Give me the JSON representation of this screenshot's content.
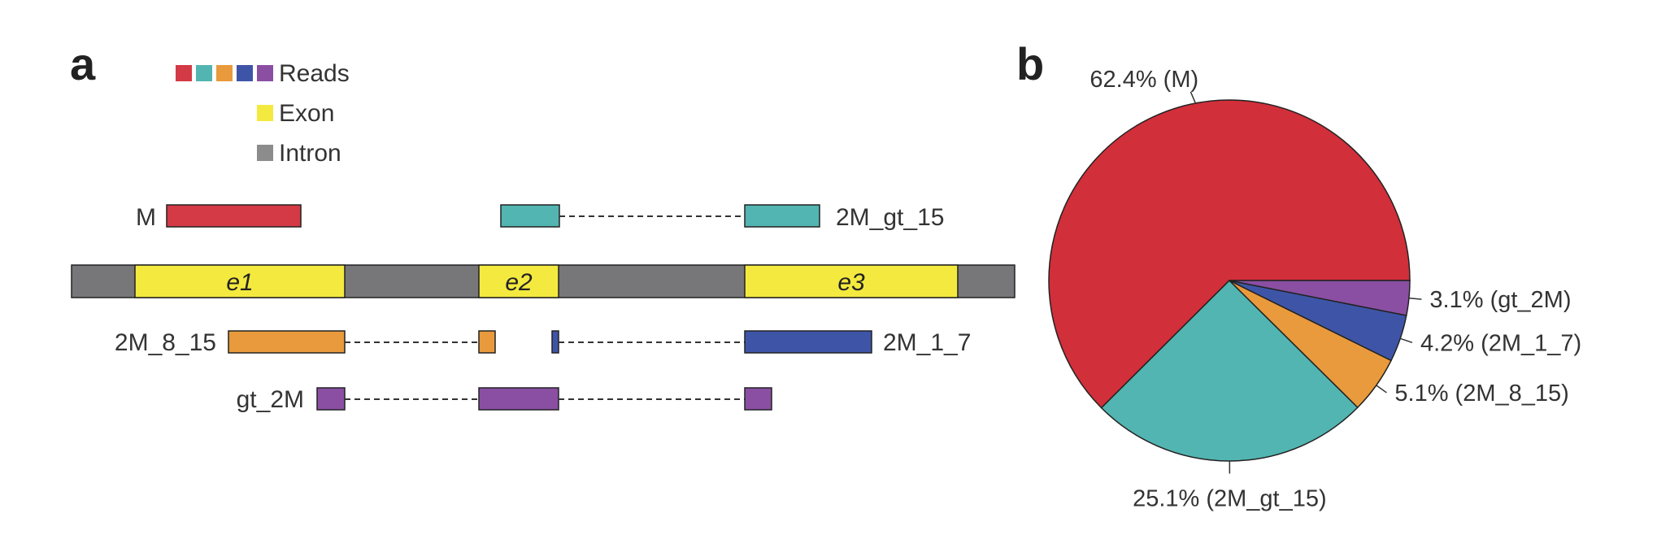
{
  "panel_a": {
    "letter": "a",
    "legend": {
      "reads_label": "Reads",
      "exon_label": "Exon",
      "intron_label": "Intron",
      "read_colors": [
        "#d33a45",
        "#52b5b1",
        "#e89a3c",
        "#3e55a7",
        "#8a4fa3"
      ],
      "exon_color": "#f4ea3f",
      "intron_color": "#8c8c8c"
    },
    "gene": {
      "exons": [
        {
          "label": "e1"
        },
        {
          "label": "e2"
        },
        {
          "label": "e3"
        }
      ],
      "intron_color": "#77777a",
      "exon_color": "#f4ea3f"
    },
    "reads": [
      {
        "label": "M",
        "color": "#d33a45"
      },
      {
        "label": "2M_gt_15",
        "color": "#52b5b1"
      },
      {
        "label": "2M_8_15",
        "color": "#e89a3c"
      },
      {
        "label": "2M_1_7",
        "color": "#3e55a7"
      },
      {
        "label": "gt_2M",
        "color": "#8a4fa3"
      }
    ]
  },
  "panel_b": {
    "letter": "b"
  },
  "chart_data": {
    "type": "pie",
    "title": "",
    "slices": [
      {
        "label": "62.4% (M)",
        "name": "M",
        "value": 62.4,
        "color": "#d12f3a"
      },
      {
        "label": "25.1% (2M_gt_15)",
        "name": "2M_gt_15",
        "value": 25.1,
        "color": "#52b5b1"
      },
      {
        "label": "5.1% (2M_8_15)",
        "name": "2M_8_15",
        "value": 5.1,
        "color": "#e89a3c"
      },
      {
        "label": "4.2% (2M_1_7)",
        "name": "2M_1_7",
        "value": 4.2,
        "color": "#3e55a7"
      },
      {
        "label": "3.1% (gt_2M)",
        "name": "gt_2M",
        "value": 3.1,
        "color": "#8a4fa3"
      }
    ]
  }
}
